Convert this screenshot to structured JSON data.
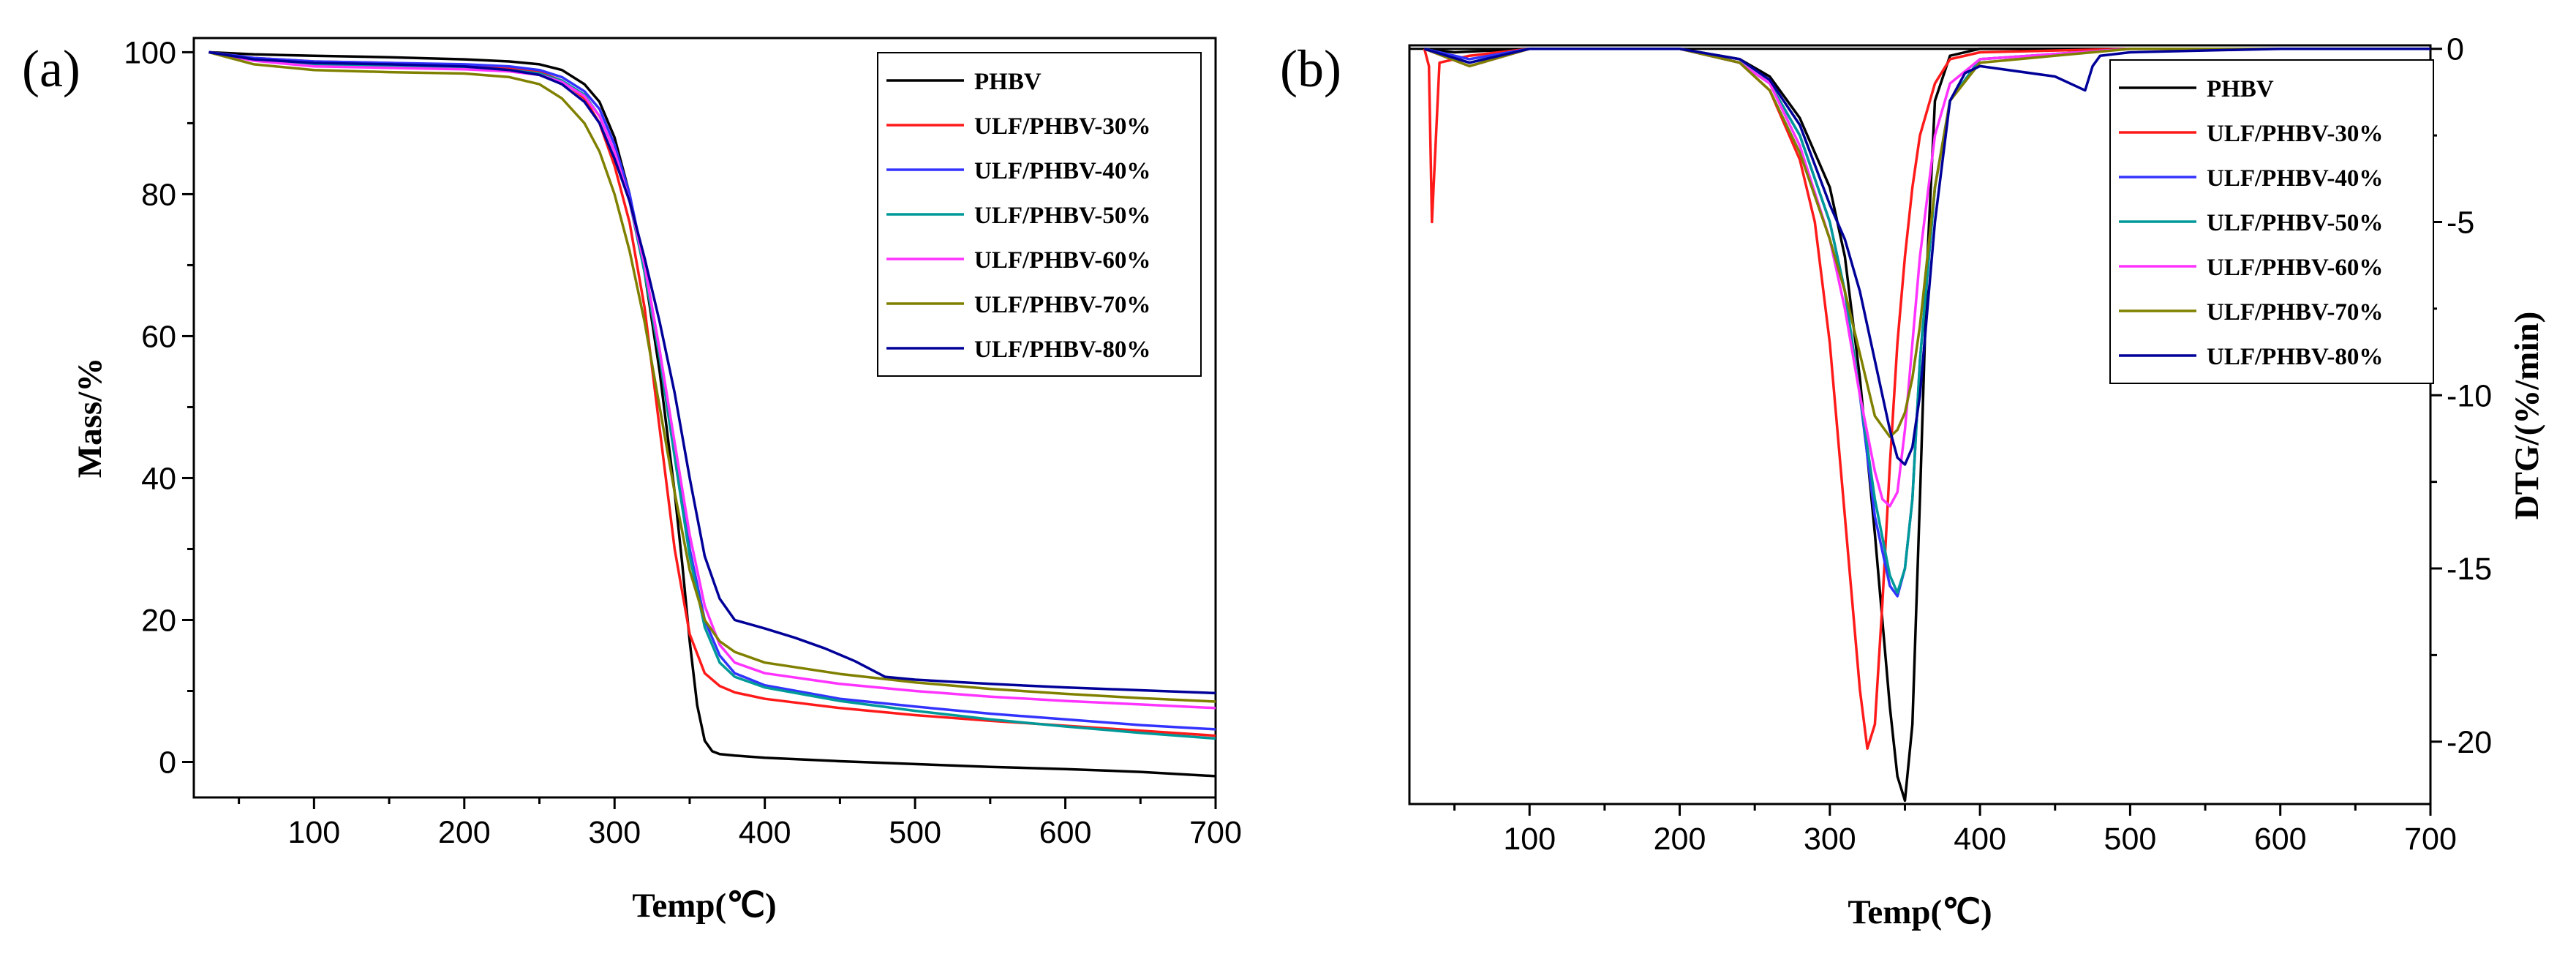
{
  "figure": {
    "legend_series": [
      "PHBV",
      "ULF/PHBV-30%",
      "ULF/PHBV-40%",
      "ULF/PHBV-50%",
      "ULF/PHBV-60%",
      "ULF/PHBV-70%",
      "ULF/PHBV-80%"
    ],
    "colors": {
      "PHBV": "#000000",
      "ULF/PHBV-30%": "#ff1a1a",
      "ULF/PHBV-40%": "#3333ff",
      "ULF/PHBV-50%": "#009999",
      "ULF/PHBV-60%": "#ff33ff",
      "ULF/PHBV-70%": "#808000",
      "ULF/PHBV-80%": "#000099"
    }
  },
  "chart_data": [
    {
      "panel_label": "(a)",
      "type": "line",
      "xlabel": "Temp(℃)",
      "ylabel": "Mass/%",
      "xlim": [
        20,
        700
      ],
      "ylim": [
        -5,
        102
      ],
      "xticks": [
        100,
        200,
        300,
        400,
        500,
        600,
        700
      ],
      "yticks": [
        0,
        20,
        40,
        60,
        80,
        100
      ],
      "legend_position": "top-right",
      "series": [
        {
          "name": "PHBV",
          "x": [
            30,
            60,
            100,
            150,
            200,
            230,
            250,
            265,
            280,
            290,
            300,
            310,
            320,
            330,
            340,
            345,
            350,
            355,
            360,
            365,
            370,
            380,
            400,
            450,
            500,
            550,
            600,
            650,
            700
          ],
          "y": [
            100,
            99.7,
            99.5,
            99.3,
            99.0,
            98.7,
            98.3,
            97.5,
            95.5,
            93,
            88,
            80,
            69,
            55,
            38,
            28,
            17,
            8,
            3,
            1.5,
            1.1,
            0.9,
            0.6,
            0.1,
            -0.3,
            -0.7,
            -1.0,
            -1.4,
            -2.0
          ]
        },
        {
          "name": "ULF/PHBV-30%",
          "x": [
            30,
            60,
            100,
            150,
            200,
            230,
            250,
            265,
            280,
            290,
            300,
            310,
            320,
            330,
            340,
            350,
            360,
            370,
            380,
            400,
            450,
            500,
            550,
            600,
            650,
            700
          ],
          "y": [
            100,
            99.2,
            98.7,
            98.5,
            98.2,
            97.8,
            97.2,
            96.0,
            93.5,
            90,
            84,
            76,
            64,
            47,
            30,
            18,
            12.5,
            10.7,
            9.8,
            8.9,
            7.6,
            6.6,
            5.8,
            5.1,
            4.4,
            3.7
          ]
        },
        {
          "name": "ULF/PHBV-40%",
          "x": [
            30,
            60,
            100,
            150,
            200,
            230,
            250,
            265,
            280,
            290,
            300,
            310,
            320,
            330,
            340,
            350,
            360,
            370,
            380,
            400,
            450,
            500,
            550,
            600,
            650,
            700
          ],
          "y": [
            100,
            99.2,
            98.7,
            98.5,
            98.3,
            98.0,
            97.5,
            96.5,
            94.5,
            92,
            87,
            80,
            70,
            58,
            44,
            30,
            20,
            15,
            12.5,
            10.8,
            8.9,
            7.8,
            6.8,
            6.0,
            5.2,
            4.6
          ]
        },
        {
          "name": "ULF/PHBV-50%",
          "x": [
            30,
            60,
            100,
            150,
            200,
            230,
            250,
            265,
            280,
            290,
            300,
            310,
            320,
            330,
            340,
            350,
            360,
            370,
            380,
            400,
            450,
            500,
            550,
            600,
            650,
            700
          ],
          "y": [
            100,
            99.0,
            98.3,
            98.0,
            97.8,
            97.5,
            97.0,
            96.0,
            94.0,
            91,
            86,
            79,
            69,
            57,
            43,
            29,
            19,
            14,
            12,
            10.5,
            8.6,
            7.2,
            6.0,
            5.0,
            4.1,
            3.3
          ]
        },
        {
          "name": "ULF/PHBV-60%",
          "x": [
            30,
            60,
            100,
            150,
            200,
            230,
            250,
            265,
            280,
            290,
            300,
            310,
            320,
            330,
            340,
            350,
            360,
            370,
            380,
            400,
            450,
            500,
            550,
            600,
            650,
            700
          ],
          "y": [
            100,
            98.8,
            98.0,
            97.8,
            97.6,
            97.3,
            96.8,
            95.8,
            93.8,
            91,
            86,
            79,
            70,
            58,
            45,
            32,
            22,
            16.5,
            14,
            12.5,
            11.0,
            10.0,
            9.2,
            8.6,
            8.1,
            7.6
          ]
        },
        {
          "name": "ULF/PHBV-70%",
          "x": [
            30,
            60,
            100,
            150,
            200,
            230,
            250,
            265,
            280,
            290,
            300,
            310,
            320,
            330,
            340,
            350,
            360,
            370,
            380,
            400,
            450,
            500,
            550,
            600,
            650,
            700
          ],
          "y": [
            100,
            98.3,
            97.5,
            97.2,
            97.0,
            96.5,
            95.5,
            93.5,
            90,
            86,
            80,
            72,
            62,
            50,
            38,
            27,
            20,
            17,
            15.5,
            14.0,
            12.4,
            11.2,
            10.3,
            9.6,
            9.0,
            8.5
          ]
        },
        {
          "name": "ULF/PHBV-80%",
          "x": [
            30,
            60,
            100,
            150,
            200,
            230,
            250,
            265,
            280,
            290,
            300,
            310,
            320,
            330,
            340,
            350,
            360,
            370,
            380,
            400,
            420,
            440,
            460,
            480,
            500,
            550,
            600,
            650,
            700
          ],
          "y": [
            100,
            99.0,
            98.5,
            98.3,
            98.0,
            97.5,
            96.8,
            95.5,
            93,
            90,
            85,
            79,
            71,
            62,
            52,
            40,
            29,
            23,
            20,
            18.8,
            17.5,
            16.0,
            14.2,
            12.0,
            11.6,
            11.0,
            10.5,
            10.1,
            9.7
          ]
        }
      ]
    },
    {
      "panel_label": "(b)",
      "type": "line",
      "xlabel": "Temp(℃)",
      "ylabel": "DTG/(%/min)",
      "xlim": [
        20,
        700
      ],
      "ylim": [
        -21.8,
        0.1
      ],
      "xticks": [
        100,
        200,
        300,
        400,
        500,
        600,
        700
      ],
      "yticks": [
        0,
        -5,
        -10,
        -15,
        -20
      ],
      "y_axis_side": "right",
      "legend_position": "top-right",
      "series": [
        {
          "name": "PHBV",
          "x": [
            30,
            50,
            100,
            200,
            240,
            260,
            280,
            300,
            310,
            320,
            330,
            340,
            345,
            350,
            355,
            360,
            365,
            370,
            380,
            400,
            500,
            600,
            700
          ],
          "y": [
            0,
            -0.1,
            0,
            0,
            -0.3,
            -0.8,
            -2.0,
            -4.0,
            -6.0,
            -9.5,
            -14.0,
            -19.0,
            -21.0,
            -21.7,
            -19.5,
            -13.0,
            -6.0,
            -1.5,
            -0.2,
            0,
            0,
            0,
            0
          ]
        },
        {
          "name": "ULF/PHBV-30%",
          "x": [
            30,
            33,
            35,
            40,
            60,
            100,
            200,
            240,
            260,
            280,
            290,
            300,
            310,
            320,
            325,
            330,
            335,
            340,
            345,
            350,
            355,
            360,
            370,
            380,
            400,
            500,
            600,
            700
          ],
          "y": [
            0,
            -0.5,
            -5.0,
            -0.4,
            -0.2,
            0,
            0,
            -0.4,
            -1.2,
            -3.2,
            -5.0,
            -8.5,
            -13.5,
            -18.5,
            -20.2,
            -19.5,
            -16.0,
            -12.0,
            -8.5,
            -6.0,
            -4.0,
            -2.5,
            -1.0,
            -0.3,
            -0.1,
            0,
            0,
            0
          ]
        },
        {
          "name": "ULF/PHBV-40%",
          "x": [
            30,
            60,
            100,
            200,
            240,
            260,
            280,
            300,
            310,
            320,
            330,
            340,
            345,
            350,
            355,
            360,
            370,
            380,
            400,
            500,
            600,
            700
          ],
          "y": [
            0,
            -0.3,
            0,
            0,
            -0.4,
            -1.0,
            -2.5,
            -5.0,
            -7.0,
            -10.0,
            -13.5,
            -15.5,
            -15.8,
            -15.0,
            -13.0,
            -9.0,
            -4.0,
            -1.5,
            -0.3,
            0,
            0,
            0
          ]
        },
        {
          "name": "ULF/PHBV-50%",
          "x": [
            30,
            60,
            100,
            200,
            240,
            260,
            280,
            300,
            310,
            320,
            330,
            340,
            345,
            350,
            355,
            360,
            370,
            380,
            400,
            500,
            600,
            700
          ],
          "y": [
            0,
            -0.4,
            0,
            0,
            -0.4,
            -1.0,
            -2.5,
            -5.0,
            -7.0,
            -10.0,
            -13.0,
            -15.2,
            -15.7,
            -15.0,
            -13.0,
            -9.0,
            -4.0,
            -1.5,
            -0.3,
            0,
            0,
            0
          ]
        },
        {
          "name": "ULF/PHBV-60%",
          "x": [
            30,
            60,
            100,
            200,
            240,
            260,
            280,
            300,
            310,
            320,
            330,
            335,
            340,
            345,
            350,
            355,
            360,
            370,
            380,
            400,
            500,
            600,
            700
          ],
          "y": [
            0,
            -0.5,
            0,
            0,
            -0.4,
            -1.0,
            -2.8,
            -5.5,
            -7.5,
            -10.0,
            -12.2,
            -13.0,
            -13.2,
            -12.8,
            -11.0,
            -8.5,
            -6.0,
            -2.5,
            -1.0,
            -0.3,
            0,
            0,
            0
          ]
        },
        {
          "name": "ULF/PHBV-70%",
          "x": [
            30,
            60,
            100,
            200,
            240,
            260,
            280,
            300,
            310,
            320,
            330,
            340,
            345,
            350,
            355,
            360,
            370,
            380,
            400,
            500,
            600,
            700
          ],
          "y": [
            0,
            -0.5,
            0,
            0,
            -0.4,
            -1.2,
            -3.0,
            -5.5,
            -7.0,
            -8.8,
            -10.6,
            -11.2,
            -11.0,
            -10.5,
            -9.5,
            -8.0,
            -4.0,
            -1.5,
            -0.4,
            0,
            0,
            0
          ]
        },
        {
          "name": "ULF/PHBV-80%",
          "x": [
            30,
            60,
            100,
            200,
            240,
            260,
            280,
            300,
            310,
            320,
            330,
            340,
            345,
            350,
            355,
            360,
            370,
            380,
            390,
            400,
            450,
            465,
            470,
            475,
            480,
            500,
            600,
            700
          ],
          "y": [
            0,
            -0.4,
            0,
            0,
            -0.3,
            -0.9,
            -2.2,
            -4.5,
            -5.5,
            -7.0,
            -9.0,
            -11.0,
            -11.8,
            -12.0,
            -11.5,
            -10.0,
            -5.0,
            -1.5,
            -0.7,
            -0.5,
            -0.8,
            -1.1,
            -1.2,
            -0.5,
            -0.2,
            -0.1,
            0,
            0
          ]
        }
      ]
    }
  ]
}
